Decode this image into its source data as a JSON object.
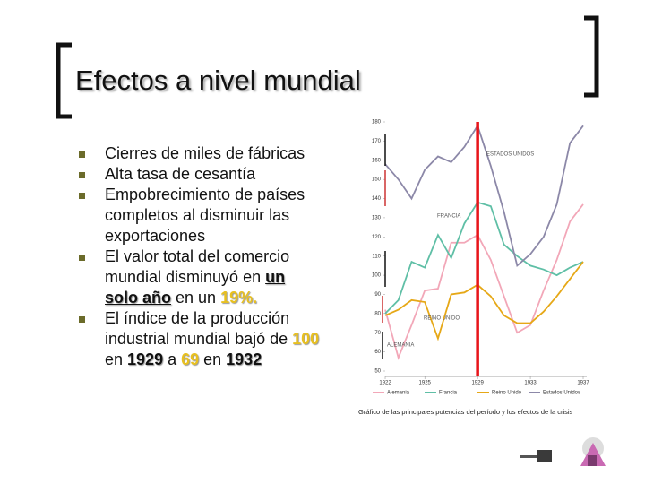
{
  "slide": {
    "title": "Efectos a nivel mundial",
    "bullets": [
      [
        "Cierres de miles de fábricas"
      ],
      [
        "Alta tasa de cesantía"
      ],
      [
        "Empobrecimiento de países completos al disminuir las exportaciones"
      ],
      [
        "El valor total del comercio mundial disminuyó en ",
        "un solo año",
        " en un ",
        "19%."
      ],
      [
        "El índice de la producción industrial mundial bajó de ",
        "100",
        " en ",
        "1929",
        " a ",
        "69",
        " en ",
        "1932"
      ]
    ],
    "caption": "Gráfico de las principales potencias del período y los efectos de la crisis"
  },
  "chart_data": {
    "type": "line",
    "x": [
      1922,
      1923,
      1924,
      1925,
      1926,
      1927,
      1928,
      1929,
      1930,
      1931,
      1932,
      1933,
      1934,
      1935,
      1936,
      1937
    ],
    "xlim": [
      1922,
      1937
    ],
    "xticks": [
      1922,
      1925,
      1929,
      1933,
      1937
    ],
    "ylim": [
      50,
      180
    ],
    "yticks": [
      50,
      60,
      70,
      80,
      90,
      100,
      110,
      120,
      130,
      140,
      150,
      160,
      170,
      180
    ],
    "highlight_x": 1929,
    "highlight_color": "#e8141a",
    "annotations": [
      "ESTADOS UNIDOS",
      "FRANCIA",
      "REINO UNIDO",
      "ALEMANIA"
    ],
    "series": [
      {
        "name": "Alemania",
        "color": "#f2a7b8",
        "values": [
          82,
          57,
          74,
          92,
          93,
          117,
          117,
          121,
          108,
          89,
          70,
          74,
          92,
          108,
          128,
          137
        ]
      },
      {
        "name": "Francia",
        "color": "#5fbfa6",
        "values": [
          80,
          87,
          107,
          104,
          121,
          109,
          127,
          138,
          136,
          116,
          110,
          105,
          103,
          100,
          104,
          107
        ]
      },
      {
        "name": "Reino Unido",
        "color": "#e6a817",
        "values": [
          79,
          82,
          87,
          86,
          67,
          90,
          91,
          95,
          89,
          79,
          75,
          75,
          81,
          89,
          98,
          107
        ]
      },
      {
        "name": "Estados Unidos",
        "color": "#8c88a8",
        "values": [
          158,
          150,
          140,
          155,
          162,
          159,
          167,
          178,
          157,
          133,
          105,
          111,
          120,
          137,
          169,
          178
        ]
      }
    ]
  }
}
